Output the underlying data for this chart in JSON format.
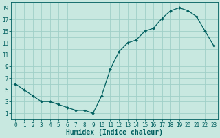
{
  "x_data": [
    0,
    1,
    2,
    3,
    4,
    5,
    6,
    7,
    8,
    9,
    10,
    11,
    12,
    13,
    14,
    15,
    16,
    17,
    18,
    19,
    20,
    21,
    22,
    23
  ],
  "y_data": [
    6,
    5,
    4,
    3,
    3,
    2.5,
    2,
    1.5,
    1.5,
    1,
    4,
    8.5,
    11.5,
    13,
    13.5,
    15,
    15.5,
    17.2,
    18.5,
    19,
    18.5,
    17.5,
    15,
    12.5
  ],
  "line_color": "#005f5f",
  "marker_color": "#005f5f",
  "bg_color": "#c8e8e0",
  "grid_color": "#a0d0c8",
  "xlabel": "Humidex (Indice chaleur)",
  "ylim": [
    0,
    20
  ],
  "xlim": [
    -0.5,
    23.5
  ],
  "yticks": [
    1,
    3,
    5,
    7,
    9,
    11,
    13,
    15,
    17,
    19
  ],
  "xticks": [
    0,
    1,
    2,
    3,
    4,
    5,
    6,
    7,
    8,
    9,
    10,
    11,
    12,
    13,
    14,
    15,
    16,
    17,
    18,
    19,
    20,
    21,
    22,
    23
  ],
  "tick_fontsize": 5.5,
  "xlabel_fontsize": 7
}
